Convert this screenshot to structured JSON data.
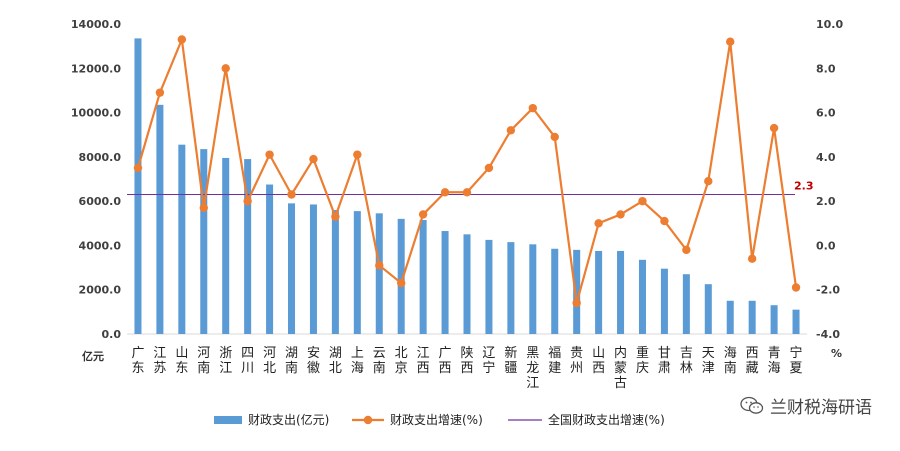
{
  "chart_data": {
    "type": "bar",
    "categories": [
      "广东",
      "江苏",
      "山东",
      "河南",
      "浙江",
      "四川",
      "河北",
      "湖南",
      "安徽",
      "湖北",
      "上海",
      "云南",
      "北京",
      "江西",
      "广西",
      "陕西",
      "辽宁",
      "新疆",
      "黑龙江",
      "福建",
      "贵州",
      "山西",
      "内蒙古",
      "重庆",
      "甘肃",
      "吉林",
      "天津",
      "海南",
      "西藏",
      "青海",
      "宁夏"
    ],
    "series": [
      {
        "name": "财政支出(亿元)",
        "type": "bar",
        "axis": "left",
        "color": "#5B9BD5",
        "values": [
          13350,
          10350,
          8550,
          8350,
          7950,
          7900,
          6750,
          5900,
          5850,
          5600,
          5550,
          5450,
          5200,
          5150,
          4650,
          4500,
          4250,
          4150,
          4050,
          3850,
          3800,
          3750,
          3750,
          3350,
          2950,
          2700,
          2250,
          1500,
          1500,
          1300,
          1100
        ]
      },
      {
        "name": "财政支出增速(%)",
        "type": "line",
        "axis": "right",
        "color": "#ED7D31",
        "values": [
          3.5,
          6.9,
          9.3,
          1.7,
          8.0,
          2.0,
          4.1,
          2.3,
          3.9,
          1.3,
          4.1,
          -0.9,
          -1.7,
          1.4,
          2.4,
          2.4,
          3.5,
          5.2,
          6.2,
          4.9,
          -2.6,
          1.0,
          1.4,
          2.0,
          1.1,
          -0.2,
          2.9,
          9.2,
          -0.6,
          5.3,
          -1.9
        ]
      },
      {
        "name": "全国财政支出增速(%)",
        "type": "hline",
        "axis": "right",
        "color": "#7030A0",
        "value": 2.3
      }
    ],
    "hline_label": "2.3",
    "y_left": {
      "min": 0,
      "max": 14000,
      "ticks": [
        "0.0",
        "2000.0",
        "4000.0",
        "6000.0",
        "8000.0",
        "10000.0",
        "12000.0",
        "14000.0"
      ],
      "unit": "亿元"
    },
    "y_right": {
      "min": -4,
      "max": 10,
      "ticks": [
        "-4.0",
        "-2.0",
        "0.0",
        "2.0",
        "4.0",
        "6.0",
        "8.0",
        "10.0"
      ],
      "unit": "%"
    },
    "grid": false,
    "legend_position": "bottom"
  },
  "watermark": "兰财税海研语"
}
